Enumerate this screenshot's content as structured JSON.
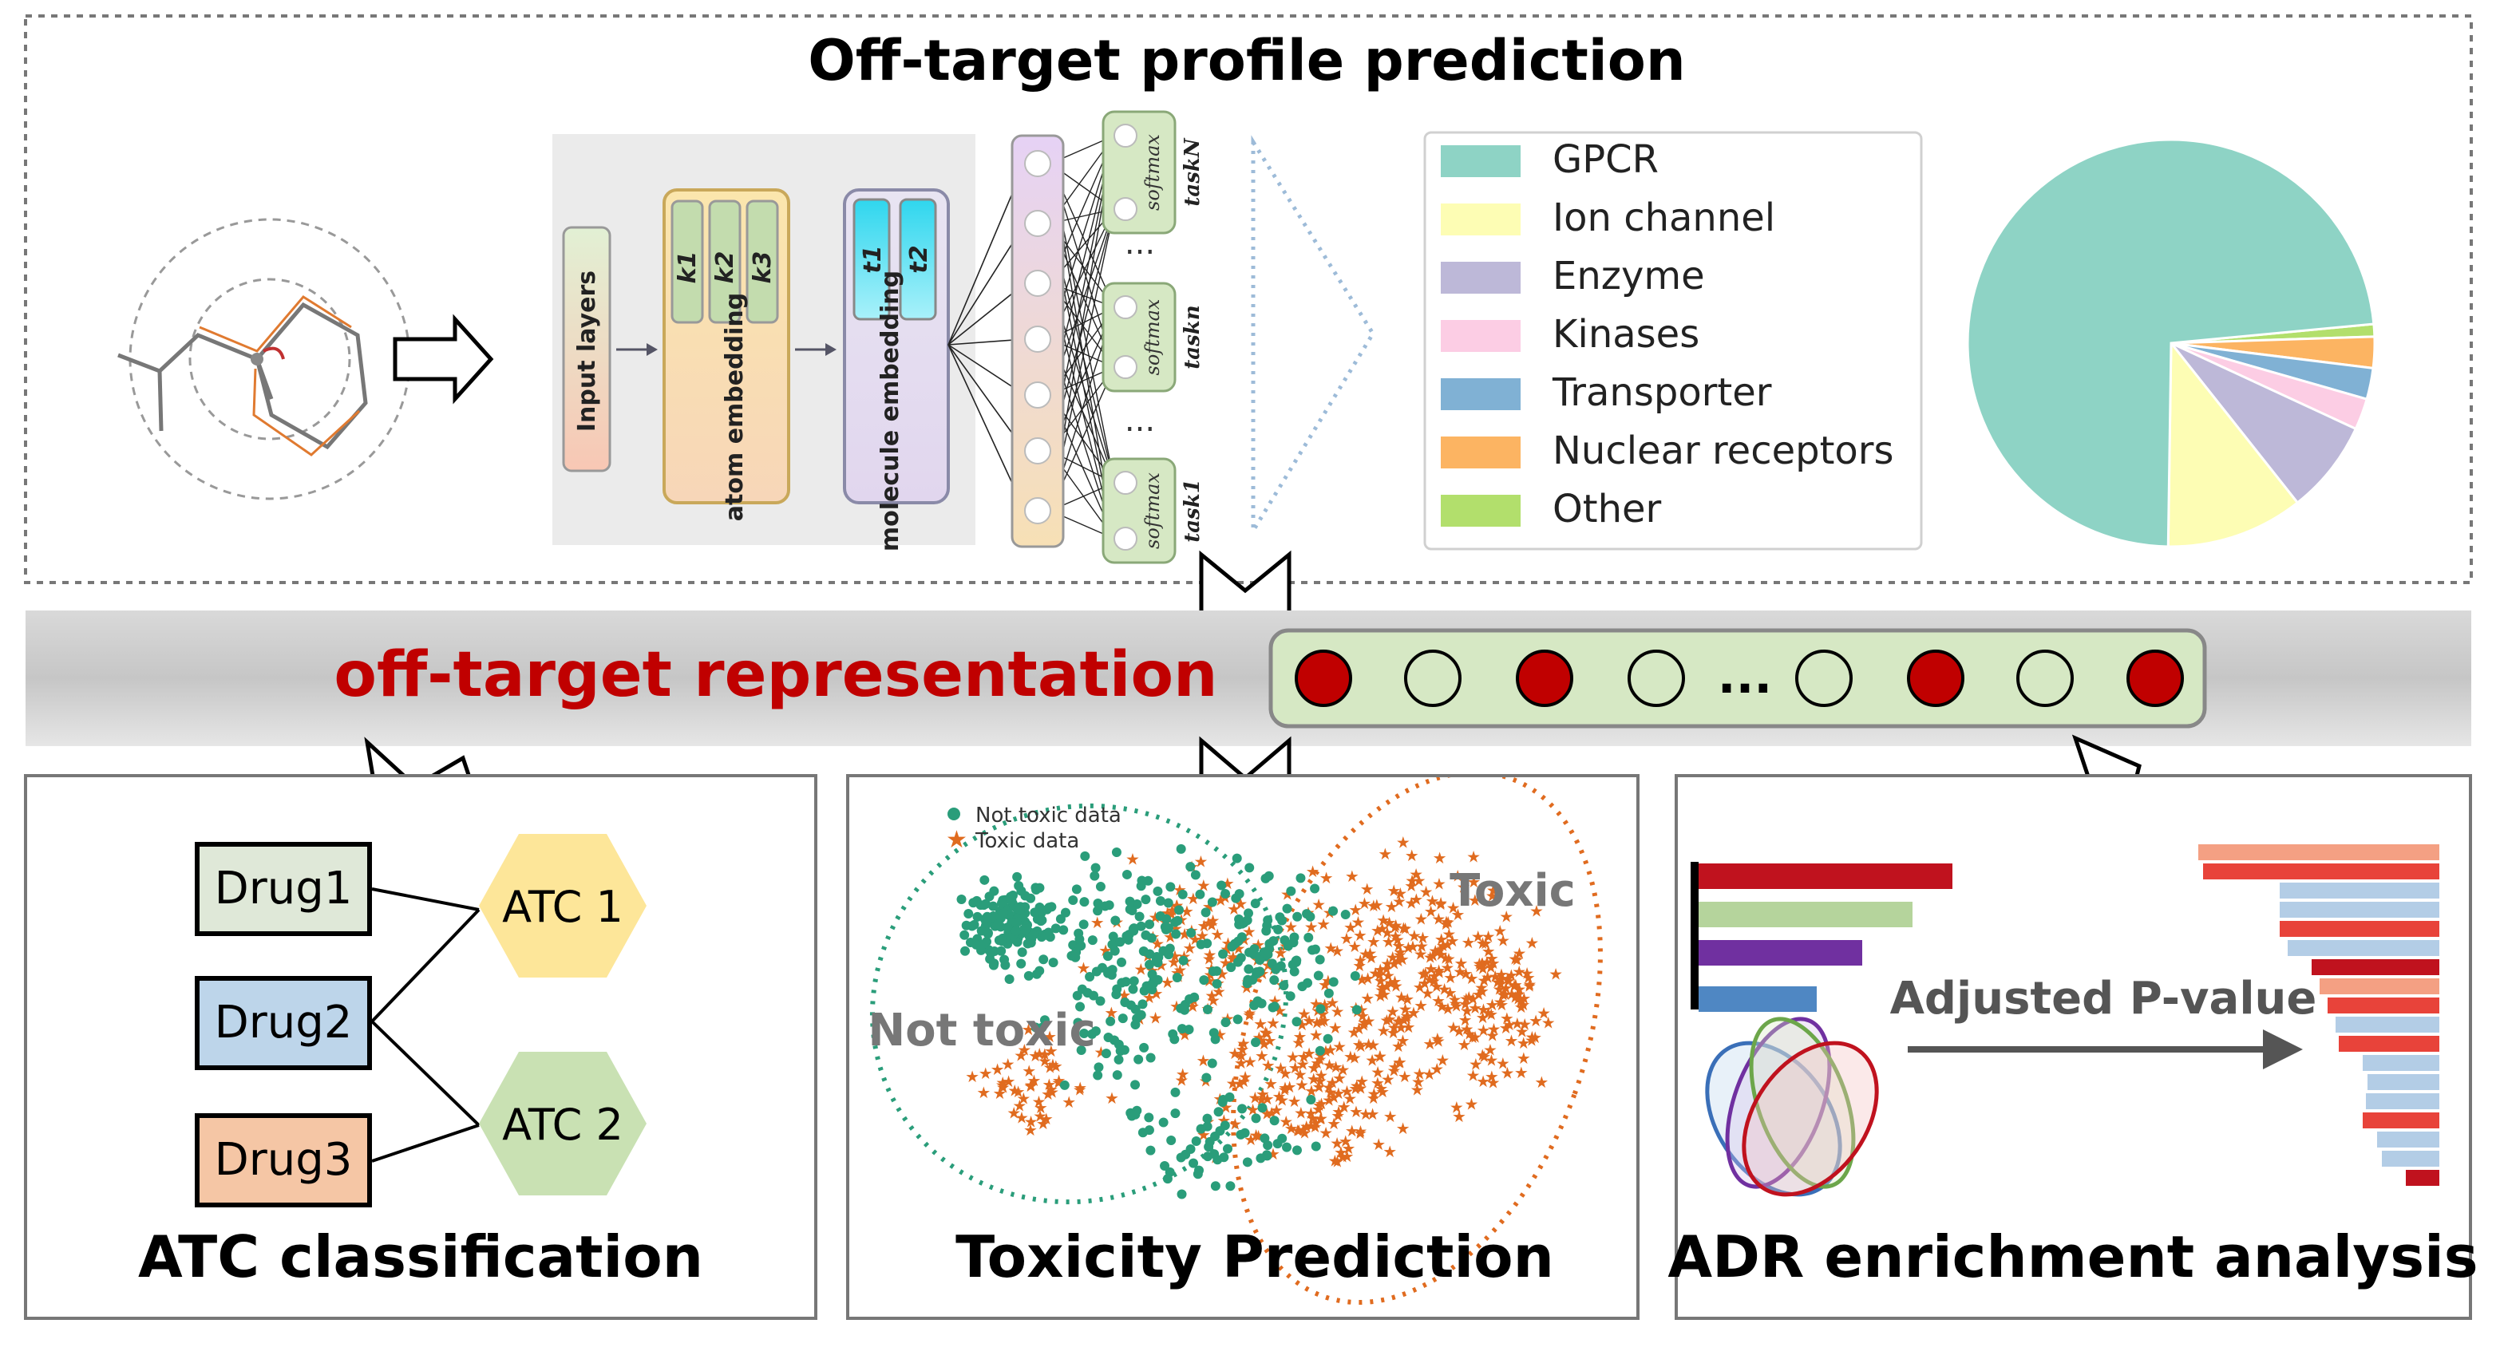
{
  "top_panel": {
    "title": "Off-target profile prediction",
    "network": {
      "input_layers": "Input layers",
      "atom_embedding": "atom embedding",
      "atom_kernels": [
        "k1",
        "k2",
        "k3"
      ],
      "molecule_embedding": "molecule embedding",
      "molecule_kernels": [
        "t1",
        "t2"
      ],
      "softmax": "softmax",
      "tasks": [
        "taskN",
        "taskn",
        "task1"
      ],
      "ellipsis": "..."
    },
    "legend": [
      {
        "label": "GPCR",
        "color": "#8ed3c5"
      },
      {
        "label": "Ion channel",
        "color": "#fdfdb4"
      },
      {
        "label": "Enzyme",
        "color": "#bdb8d8"
      },
      {
        "label": "Kinases",
        "color": "#fccde4"
      },
      {
        "label": "Transporter",
        "color": "#80b1d4"
      },
      {
        "label": "Nuclear receptors",
        "color": "#fcb462"
      },
      {
        "label": "Other",
        "color": "#b2df6c"
      }
    ],
    "pie_values": [
      0.74,
      0.11,
      0.075,
      0.025,
      0.025,
      0.025,
      0.01
    ]
  },
  "representation": {
    "label": "off-target representation",
    "bits": [
      1,
      0,
      1,
      0,
      "...",
      0,
      1,
      0,
      1
    ],
    "filled_color": "#c00000",
    "bar_color": "#d6e8c4"
  },
  "atc_panel": {
    "title": "ATC classification",
    "drugs": [
      {
        "label": "Drug1",
        "color": "#dfe8d8"
      },
      {
        "label": "Drug2",
        "color": "#bdd5ea"
      },
      {
        "label": "Drug3",
        "color": "#f5c6a5"
      }
    ],
    "classes": [
      {
        "label": "ATC 1",
        "color": "#fde699"
      },
      {
        "label": "ATC 2",
        "color": "#c9e1b3"
      }
    ]
  },
  "tox_panel": {
    "title": "Toxicity Prediction",
    "legend": [
      {
        "label": "Not toxic data",
        "color": "#2a9d7a"
      },
      {
        "label": "Toxic data",
        "color": "#e06b1f"
      }
    ],
    "not_toxic_label": "Not toxic",
    "toxic_label": "Toxic"
  },
  "adr_panel": {
    "title": "ADR enrichment analysis",
    "arrow_label": "Adjusted P-value"
  }
}
